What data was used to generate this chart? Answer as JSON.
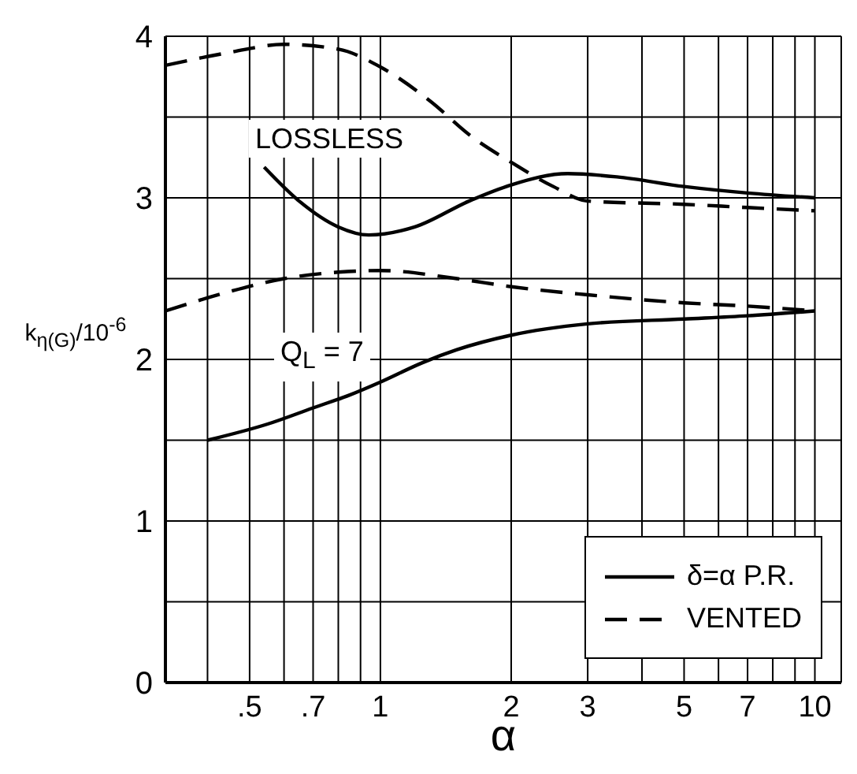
{
  "chart_data": {
    "type": "line",
    "xlabel": "α",
    "ylabel": "k$_{η(G)}$/10$^{-6}$",
    "log": "x",
    "grid": true,
    "legend": "bottom right",
    "marker": "none",
    "xlim": [
      0.32,
      11.5
    ],
    "ylim": [
      0,
      4
    ],
    "xticks": [
      {
        "value": 0.4,
        "label": null
      },
      {
        "value": 0.5,
        "label": ".5"
      },
      {
        "value": 0.6,
        "label": null
      },
      {
        "value": 0.7,
        "label": ".7"
      },
      {
        "value": 0.8,
        "label": null
      },
      {
        "value": 0.9,
        "label": null
      },
      1,
      2,
      3,
      {
        "value": 4,
        "label": null
      },
      5,
      {
        "value": 6,
        "label": null
      },
      7,
      {
        "value": 8,
        "label": null
      },
      {
        "value": 9,
        "label": null
      },
      10
    ],
    "yticks": [
      0,
      {
        "value": 0.5,
        "label": null
      },
      1,
      {
        "value": 1.5,
        "label": null
      },
      2,
      {
        "value": 2.5,
        "label": null
      },
      3,
      {
        "value": 3.5,
        "label": null
      },
      4
    ],
    "series": [
      {
        "name": "δ=α P.R.",
        "color": "#000000",
        "line_style": "solid",
        "x": [
          0.54,
          0.65,
          0.8,
          0.94,
          1.2,
          1.6,
          2,
          2.7,
          3.5,
          5,
          7,
          10
        ],
        "values": [
          3.19,
          2.98,
          2.82,
          2.77,
          2.82,
          2.98,
          3.08,
          3.15,
          3.13,
          3.07,
          3.03,
          3.0
        ]
      },
      {
        "name": "VENTED",
        "color": "#000000",
        "line_style": "dashed",
        "x": [
          0.32,
          0.45,
          0.6,
          0.8,
          1,
          1.3,
          1.62,
          2,
          2.5,
          3,
          5,
          7,
          10
        ],
        "values": [
          3.82,
          3.9,
          3.95,
          3.92,
          3.81,
          3.6,
          3.38,
          3.22,
          3.07,
          2.98,
          2.96,
          2.94,
          2.92
        ]
      },
      {
        "color": "#000000",
        "line_style": "solid",
        "x": [
          0.4,
          0.55,
          0.7,
          0.85,
          1,
          1.25,
          1.5,
          2,
          3,
          5,
          7,
          10
        ],
        "values": [
          1.5,
          1.6,
          1.7,
          1.78,
          1.86,
          1.98,
          2.06,
          2.15,
          2.22,
          2.25,
          2.27,
          2.3
        ]
      },
      {
        "color": "#000000",
        "line_style": "dashed",
        "x": [
          0.32,
          0.45,
          0.6,
          0.8,
          1,
          1.5,
          2,
          3,
          5,
          7,
          10
        ],
        "values": [
          2.3,
          2.42,
          2.5,
          2.54,
          2.55,
          2.5,
          2.45,
          2.4,
          2.35,
          2.33,
          2.3
        ]
      }
    ],
    "annotations": [
      "LOSSLESS",
      "Q$_{L}$ = 7"
    ]
  }
}
